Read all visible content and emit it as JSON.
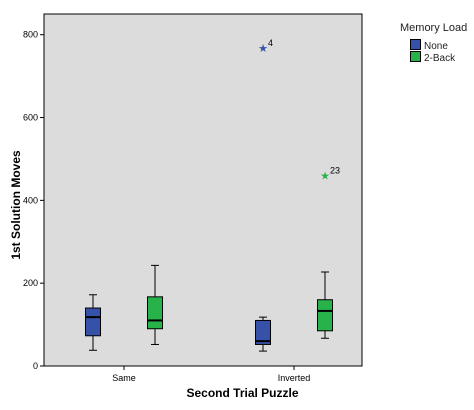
{
  "chart_data": {
    "type": "boxplot",
    "xlabel": "Second Trial Puzzle",
    "ylabel": "1st Solution Moves",
    "ylim": [
      0,
      850
    ],
    "yticks": [
      0,
      200,
      400,
      600,
      800
    ],
    "categories": [
      "Same",
      "Inverted"
    ],
    "legend": {
      "title": "Memory Load",
      "placement": "right-top"
    },
    "grid": false,
    "series": [
      {
        "name": "None",
        "color": "#3651a8",
        "boxes": [
          {
            "min": 38,
            "q1": 73,
            "median": 118,
            "q3": 140,
            "max": 172,
            "outliers": []
          },
          {
            "min": 36,
            "q1": 52,
            "median": 60,
            "q3": 110,
            "max": 118,
            "outliers": [
              {
                "value": 768,
                "label": "4"
              }
            ]
          }
        ]
      },
      {
        "name": "2-Back",
        "color": "#28b34a",
        "boxes": [
          {
            "min": 52,
            "q1": 90,
            "median": 110,
            "q3": 167,
            "max": 243,
            "outliers": []
          },
          {
            "min": 67,
            "q1": 85,
            "median": 133,
            "q3": 160,
            "max": 227,
            "outliers": [
              {
                "value": 460,
                "label": "23"
              }
            ]
          }
        ]
      }
    ]
  }
}
